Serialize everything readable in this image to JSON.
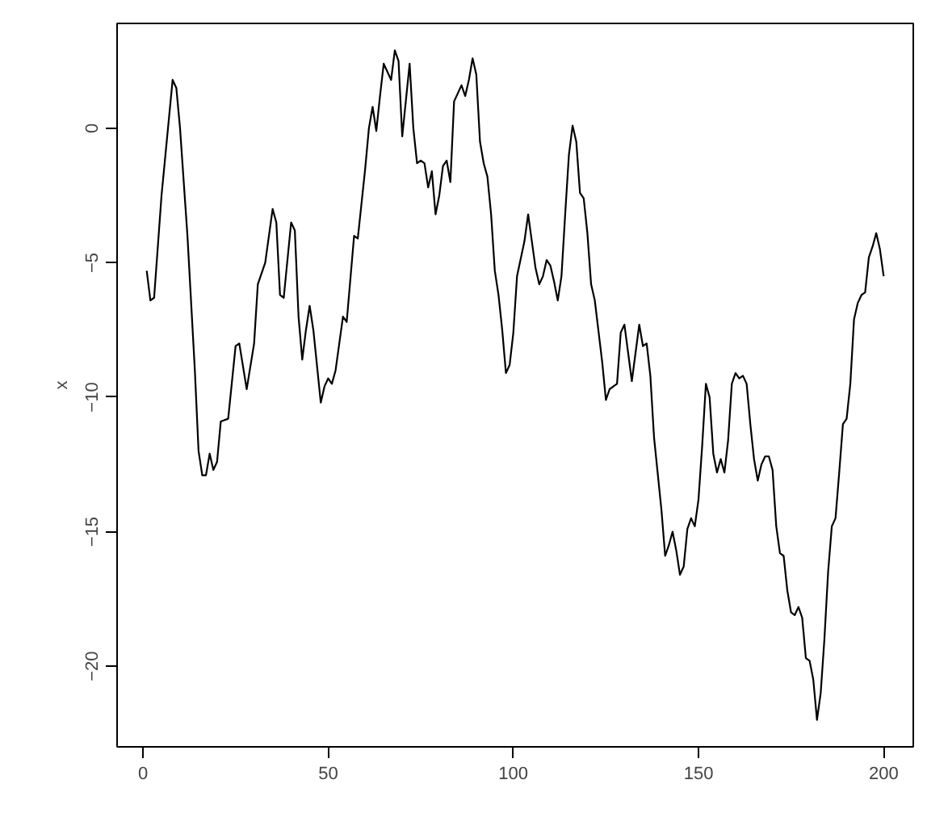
{
  "chart_data": {
    "type": "line",
    "ylabel": "x",
    "color": "#000000",
    "x": [
      1,
      2,
      3,
      5,
      8,
      9,
      10,
      12,
      14,
      15,
      16,
      17,
      18,
      19,
      20,
      21,
      23,
      25,
      26,
      28,
      30,
      31,
      33,
      35,
      36,
      37,
      38,
      40,
      41,
      42,
      43,
      44,
      45,
      46,
      48,
      49,
      50,
      51,
      52,
      54,
      55,
      57,
      58,
      60,
      61,
      62,
      63,
      64,
      65,
      66,
      67,
      68,
      69,
      70,
      72,
      73,
      74,
      75,
      76,
      77,
      78,
      79,
      80,
      81,
      82,
      83,
      84,
      85,
      86,
      87,
      88,
      89,
      90,
      91,
      92,
      93,
      94,
      95,
      96,
      97,
      98,
      99,
      100,
      101,
      103,
      104,
      105,
      106,
      107,
      108,
      109,
      110,
      111,
      112,
      113,
      114,
      115,
      116,
      117,
      118,
      119,
      120,
      121,
      122,
      124,
      125,
      126,
      127,
      128,
      129,
      130,
      132,
      134,
      135,
      136,
      137,
      138,
      140,
      141,
      142,
      143,
      144,
      145,
      146,
      147,
      148,
      149,
      150,
      151,
      152,
      153,
      154,
      155,
      156,
      157,
      158,
      159,
      160,
      161,
      162,
      163,
      164,
      165,
      166,
      167,
      168,
      169,
      170,
      171,
      172,
      173,
      174,
      175,
      176,
      177,
      178,
      179,
      180,
      181,
      182,
      183,
      184,
      185,
      186,
      187,
      188,
      189,
      190,
      191,
      192,
      193,
      194,
      195,
      196,
      197,
      198,
      199,
      200
    ],
    "values": [
      -5.3,
      -6.4,
      -6.3,
      -2.5,
      1.8,
      1.5,
      0,
      -4,
      -9,
      -12,
      -12.9,
      -12.9,
      -12.1,
      -12.7,
      -12.4,
      -10.9,
      -10.8,
      -8.1,
      -8.0,
      -9.7,
      -8,
      -5.8,
      -5,
      -3,
      -3.5,
      -6.2,
      -6.3,
      -3.5,
      -3.8,
      -7,
      -8.6,
      -7.5,
      -6.6,
      -7.5,
      -10.2,
      -9.6,
      -9.3,
      -9.5,
      -9.0,
      -7.0,
      -7.2,
      -4.0,
      -4.1,
      -1.5,
      0,
      0.8,
      -0.1,
      1.2,
      2.4,
      2.1,
      1.8,
      2.9,
      2.5,
      -0.3,
      2.4,
      0,
      -1.3,
      -1.2,
      -1.3,
      -2.2,
      -1.6,
      -3.2,
      -2.5,
      -1.4,
      -1.2,
      -2.0,
      1.0,
      1.3,
      1.6,
      1.2,
      1.8,
      2.6,
      2.0,
      -0.5,
      -1.3,
      -1.8,
      -3.2,
      -5.3,
      -6.2,
      -7.5,
      -9.1,
      -8.8,
      -7.6,
      -5.5,
      -4.2,
      -3.2,
      -4.2,
      -5.2,
      -5.8,
      -5.5,
      -4.9,
      -5.1,
      -5.7,
      -6.4,
      -5.5,
      -3.2,
      -1.0,
      0.1,
      -0.5,
      -2.4,
      -2.6,
      -3.9,
      -5.8,
      -6.4,
      -8.7,
      -10.1,
      -9.7,
      -9.6,
      -9.5,
      -7.6,
      -7.3,
      -9.4,
      -7.3,
      -8.1,
      -8.0,
      -9.2,
      -11.5,
      -14.2,
      -15.9,
      -15.5,
      -15.0,
      -15.7,
      -16.6,
      -16.3,
      -14.9,
      -14.5,
      -14.8,
      -13.8,
      -11.8,
      -9.5,
      -10.0,
      -12.1,
      -12.8,
      -12.3,
      -12.8,
      -11.6,
      -9.5,
      -9.1,
      -9.3,
      -9.2,
      -9.5,
      -11.0,
      -12.3,
      -13.1,
      -12.5,
      -12.2,
      -12.2,
      -12.7,
      -14.8,
      -15.8,
      -15.9,
      -17.2,
      -18.0,
      -18.1,
      -17.8,
      -18.2,
      -19.7,
      -19.8,
      -20.5,
      -22.0,
      -21.0,
      -19.0,
      -16.5,
      -14.8,
      -14.5,
      -12.8,
      -11.0,
      -10.8,
      -9.5,
      -7.1,
      -6.5,
      -6.2,
      -6.1,
      -4.8,
      -4.4,
      -3.9,
      -4.5,
      -5.5
    ],
    "xlim": [
      -7,
      208
    ],
    "ylim": [
      -23,
      3.9
    ],
    "xticks": [
      0,
      50,
      100,
      150,
      200
    ],
    "yticks": [
      -20,
      -15,
      -10,
      -5,
      0
    ],
    "grid": false,
    "marker": "none",
    "line_style": "solid"
  }
}
